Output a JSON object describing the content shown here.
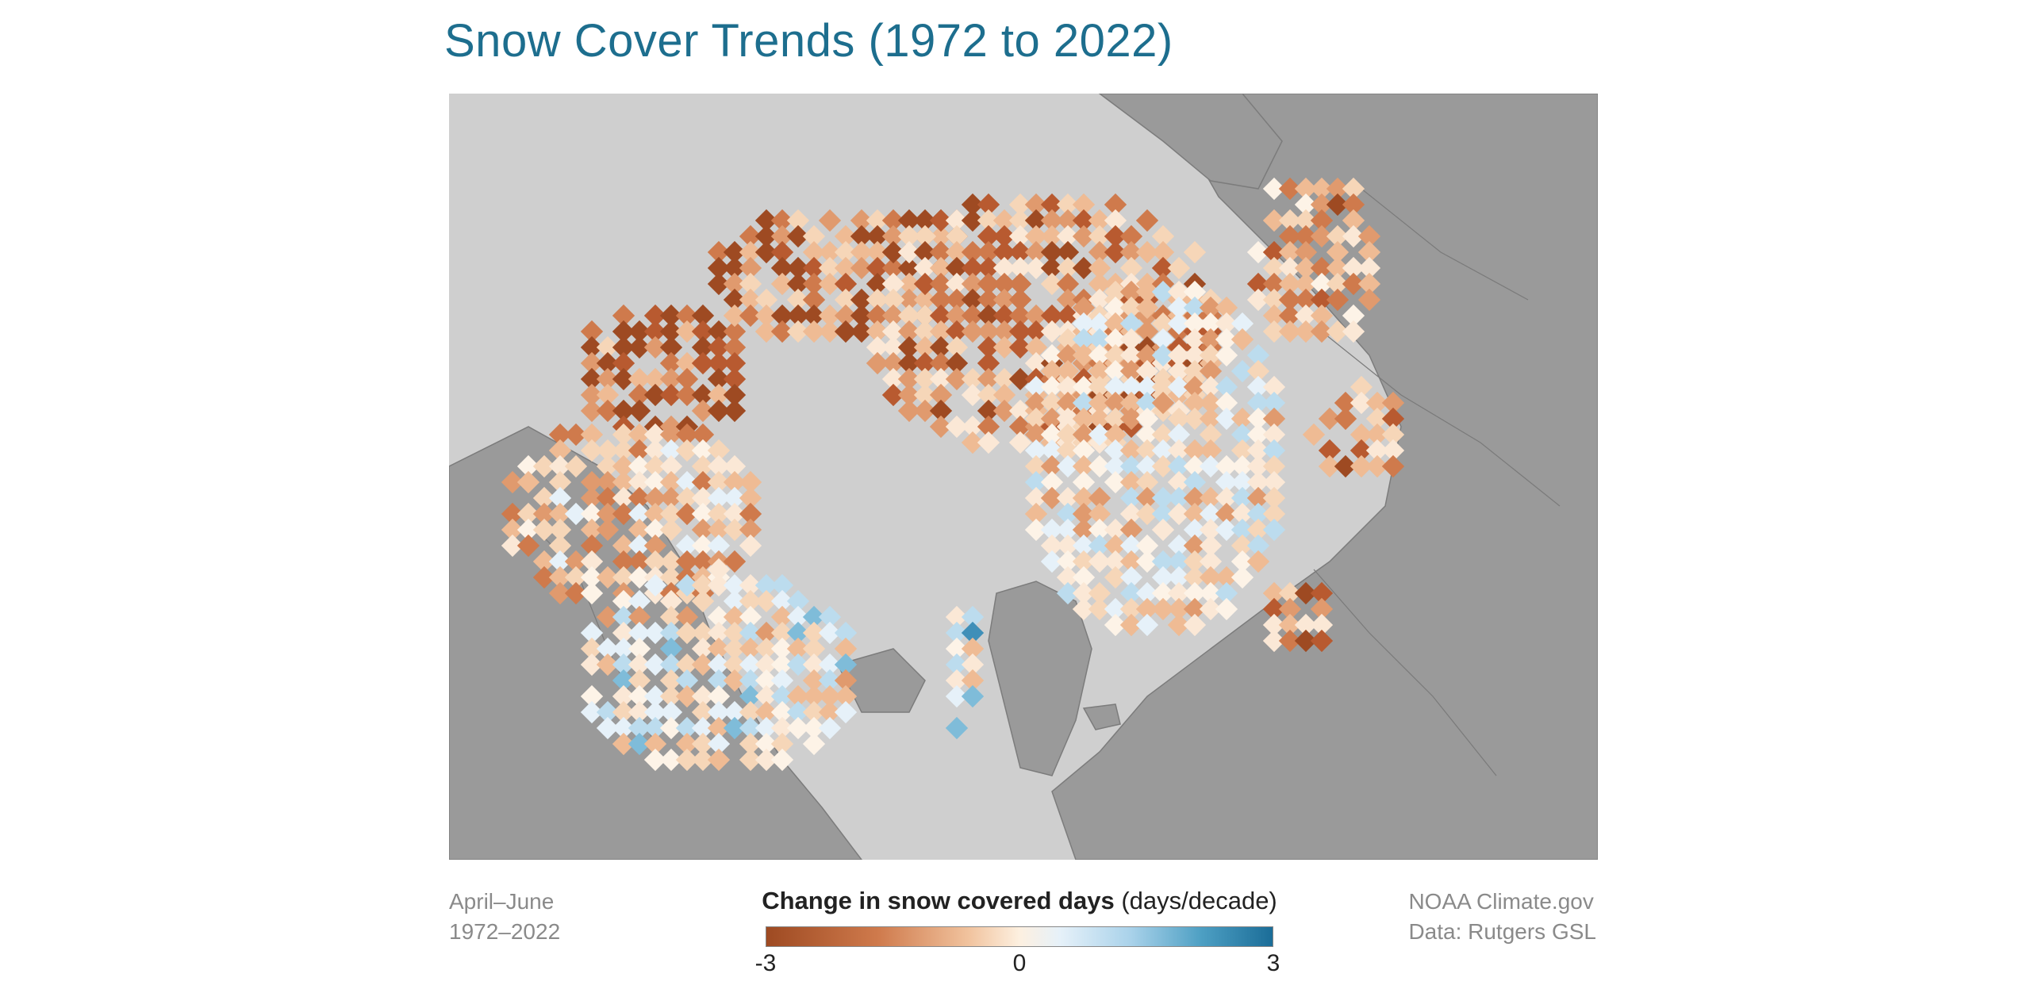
{
  "title": "Snow Cover Trends (1972 to 2022)",
  "left_note": {
    "season": "April–June",
    "years": "1972–2022"
  },
  "right_note": {
    "source": "NOAA Climate.gov",
    "data": "Data: Rutgers GSL"
  },
  "legend": {
    "title_bold": "Change in snow covered days",
    "title_unit": "(days/decade)",
    "ticks": [
      "-3",
      "0",
      "3"
    ],
    "range": [
      -3,
      3
    ]
  },
  "colors": {
    "ocean": "#cfcfcf",
    "land": "#9a9a9a",
    "title": "#1d6e8e",
    "scale_negative": "#9e4a22",
    "scale_neutral": "#fdf3e7",
    "scale_positive": "#1b6d98"
  }
}
